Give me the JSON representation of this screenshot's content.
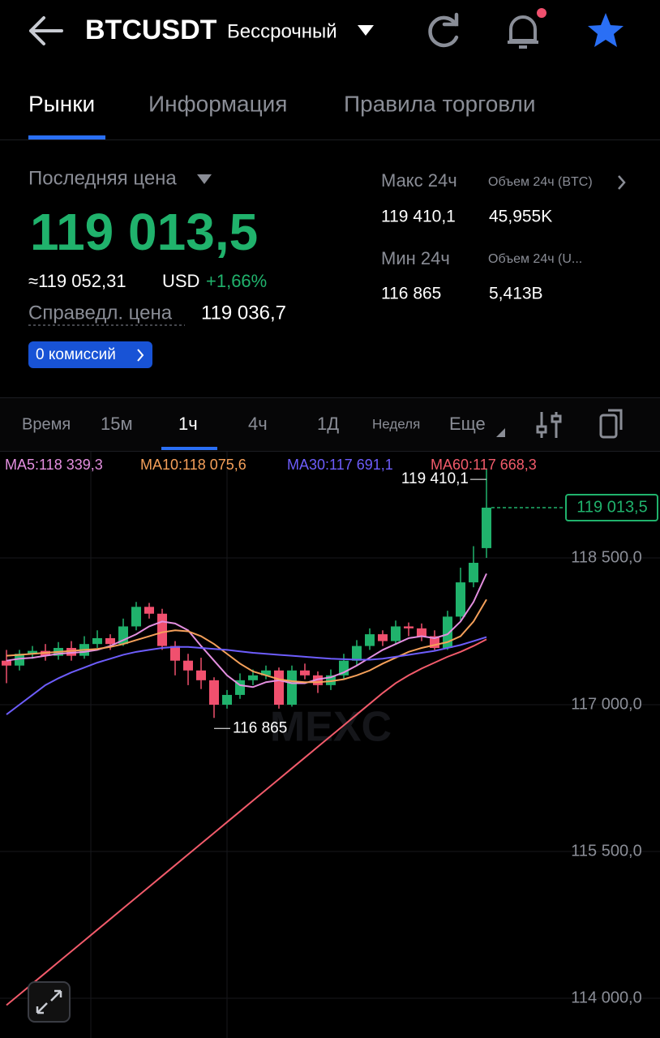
{
  "header": {
    "symbol": "BTCUSDT",
    "contract": "Бессрочный"
  },
  "tabs": [
    "Рынки",
    "Информация",
    "Правила торговли"
  ],
  "price": {
    "label": "Последняя цена",
    "last": "119 013,5",
    "approx": "≈119 052,31",
    "currency": "USD",
    "change": "+1,66%",
    "fair_label": "Справедл. цена",
    "fair": "119 036,7",
    "fee_badge": "0 комиссий"
  },
  "stats": {
    "high_label": "Макс 24ч",
    "high": "119 410,1",
    "vol_btc_label": "Объем 24ч (BTC)",
    "vol_btc": "45,955K",
    "low_label": "Мин 24ч",
    "low": "116 865",
    "vol_usdt_label": "Объем 24ч  (U...",
    "vol_usdt": "5,413B"
  },
  "intervals": [
    "Время",
    "15м",
    "1ч",
    "4ч",
    "1Д",
    "Неделя",
    "Еще"
  ],
  "chart": {
    "type": "candlestick",
    "up_color": "#20b26c",
    "down_color": "#f0506e",
    "ylim": [
      113843,
      119577
    ],
    "yticks": [
      {
        "value": 114000,
        "label": "114 000,0"
      },
      {
        "value": 115500,
        "label": "115 500,0"
      },
      {
        "value": 117000,
        "label": "117 000,0"
      },
      {
        "value": 118500,
        "label": "118 500,0"
      }
    ],
    "candles": [
      [
        117450,
        117560,
        117220,
        117400
      ],
      [
        117400,
        117560,
        117350,
        117520
      ],
      [
        117520,
        117600,
        117470,
        117550
      ],
      [
        117550,
        117620,
        117450,
        117500
      ],
      [
        117500,
        117640,
        117460,
        117580
      ],
      [
        117580,
        117650,
        117450,
        117500
      ],
      [
        117500,
        117700,
        117470,
        117620
      ],
      [
        117620,
        117760,
        117580,
        117680
      ],
      [
        117680,
        117720,
        117560,
        117620
      ],
      [
        117620,
        117880,
        117600,
        117800
      ],
      [
        117800,
        118050,
        117760,
        118000
      ],
      [
        118000,
        118040,
        117880,
        117930
      ],
      [
        117930,
        117980,
        117560,
        117600
      ],
      [
        117600,
        117650,
        117300,
        117450
      ],
      [
        117450,
        117520,
        117200,
        117350
      ],
      [
        117350,
        117480,
        117160,
        117250
      ],
      [
        117250,
        117280,
        116865,
        117000
      ],
      [
        117000,
        117150,
        116960,
        117100
      ],
      [
        117100,
        117320,
        117060,
        117250
      ],
      [
        117250,
        117360,
        117200,
        117300
      ],
      [
        117300,
        117400,
        117260,
        117350
      ],
      [
        117350,
        117380,
        116960,
        117000
      ],
      [
        117000,
        117400,
        116980,
        117350
      ],
      [
        117350,
        117420,
        117260,
        117300
      ],
      [
        117300,
        117340,
        117120,
        117200
      ],
      [
        117200,
        117360,
        117150,
        117300
      ],
      [
        117300,
        117520,
        117260,
        117450
      ],
      [
        117450,
        117660,
        117400,
        117600
      ],
      [
        117600,
        117780,
        117560,
        117720
      ],
      [
        117720,
        117760,
        117600,
        117650
      ],
      [
        117650,
        117860,
        117620,
        117800
      ],
      [
        117800,
        117840,
        117700,
        117780
      ],
      [
        117780,
        117830,
        117650,
        117700
      ],
      [
        117700,
        117760,
        117560,
        117580
      ],
      [
        117580,
        117960,
        117560,
        117900
      ],
      [
        117900,
        118400,
        117860,
        118250
      ],
      [
        118250,
        118620,
        118200,
        118450
      ],
      [
        118600,
        119410.1,
        118500,
        119013.5
      ]
    ],
    "series": [
      {
        "name": "MA5:118 339,3",
        "color": "#e48fe0",
        "values": [
          117450,
          117470,
          117480,
          117500,
          117520,
          117530,
          117540,
          117560,
          117600,
          117660,
          117720,
          117800,
          117850,
          117830,
          117760,
          117600,
          117450,
          117300,
          117200,
          117180,
          117230,
          117250,
          117220,
          117220,
          117260,
          117280,
          117330,
          117400,
          117480,
          117560,
          117620,
          117680,
          117700,
          117680,
          117720,
          117850,
          118050,
          118339.3
        ]
      },
      {
        "name": "MA10:118 075,6",
        "color": "#f5a05a",
        "values": [
          117500,
          117510,
          117520,
          117530,
          117540,
          117550,
          117560,
          117570,
          117590,
          117620,
          117660,
          117700,
          117740,
          117760,
          117750,
          117700,
          117620,
          117520,
          117420,
          117340,
          117300,
          117260,
          117240,
          117230,
          117230,
          117240,
          117260,
          117300,
          117350,
          117420,
          117480,
          117540,
          117580,
          117610,
          117640,
          117700,
          117850,
          118075.6
        ]
      },
      {
        "name": "MA30:117 691,1",
        "color": "#6d5dfc",
        "values": [
          116900,
          117000,
          117100,
          117200,
          117270,
          117330,
          117380,
          117430,
          117470,
          117510,
          117540,
          117560,
          117580,
          117590,
          117590,
          117580,
          117570,
          117560,
          117545,
          117530,
          117520,
          117510,
          117500,
          117490,
          117480,
          117470,
          117465,
          117460,
          117460,
          117470,
          117490,
          117510,
          117530,
          117550,
          117580,
          117610,
          117650,
          117691.1
        ]
      },
      {
        "name": "MA60:117 668,3",
        "color": "#f25b6b",
        "values": [
          113930,
          114040,
          114150,
          114260,
          114370,
          114480,
          114590,
          114700,
          114810,
          114920,
          115030,
          115140,
          115250,
          115360,
          115470,
          115580,
          115690,
          115800,
          115910,
          116020,
          116130,
          116240,
          116350,
          116460,
          116570,
          116680,
          116790,
          116900,
          117010,
          117120,
          117220,
          117300,
          117370,
          117430,
          117490,
          117540,
          117600,
          117668.3
        ]
      }
    ],
    "last_price": {
      "value": 119013.5,
      "label": "119 013,5"
    },
    "high_mark": {
      "value": 119410.1,
      "label": "119 410,1"
    },
    "low_mark": {
      "value": 116865,
      "label": "116 865"
    },
    "watermark": "MEXC"
  }
}
